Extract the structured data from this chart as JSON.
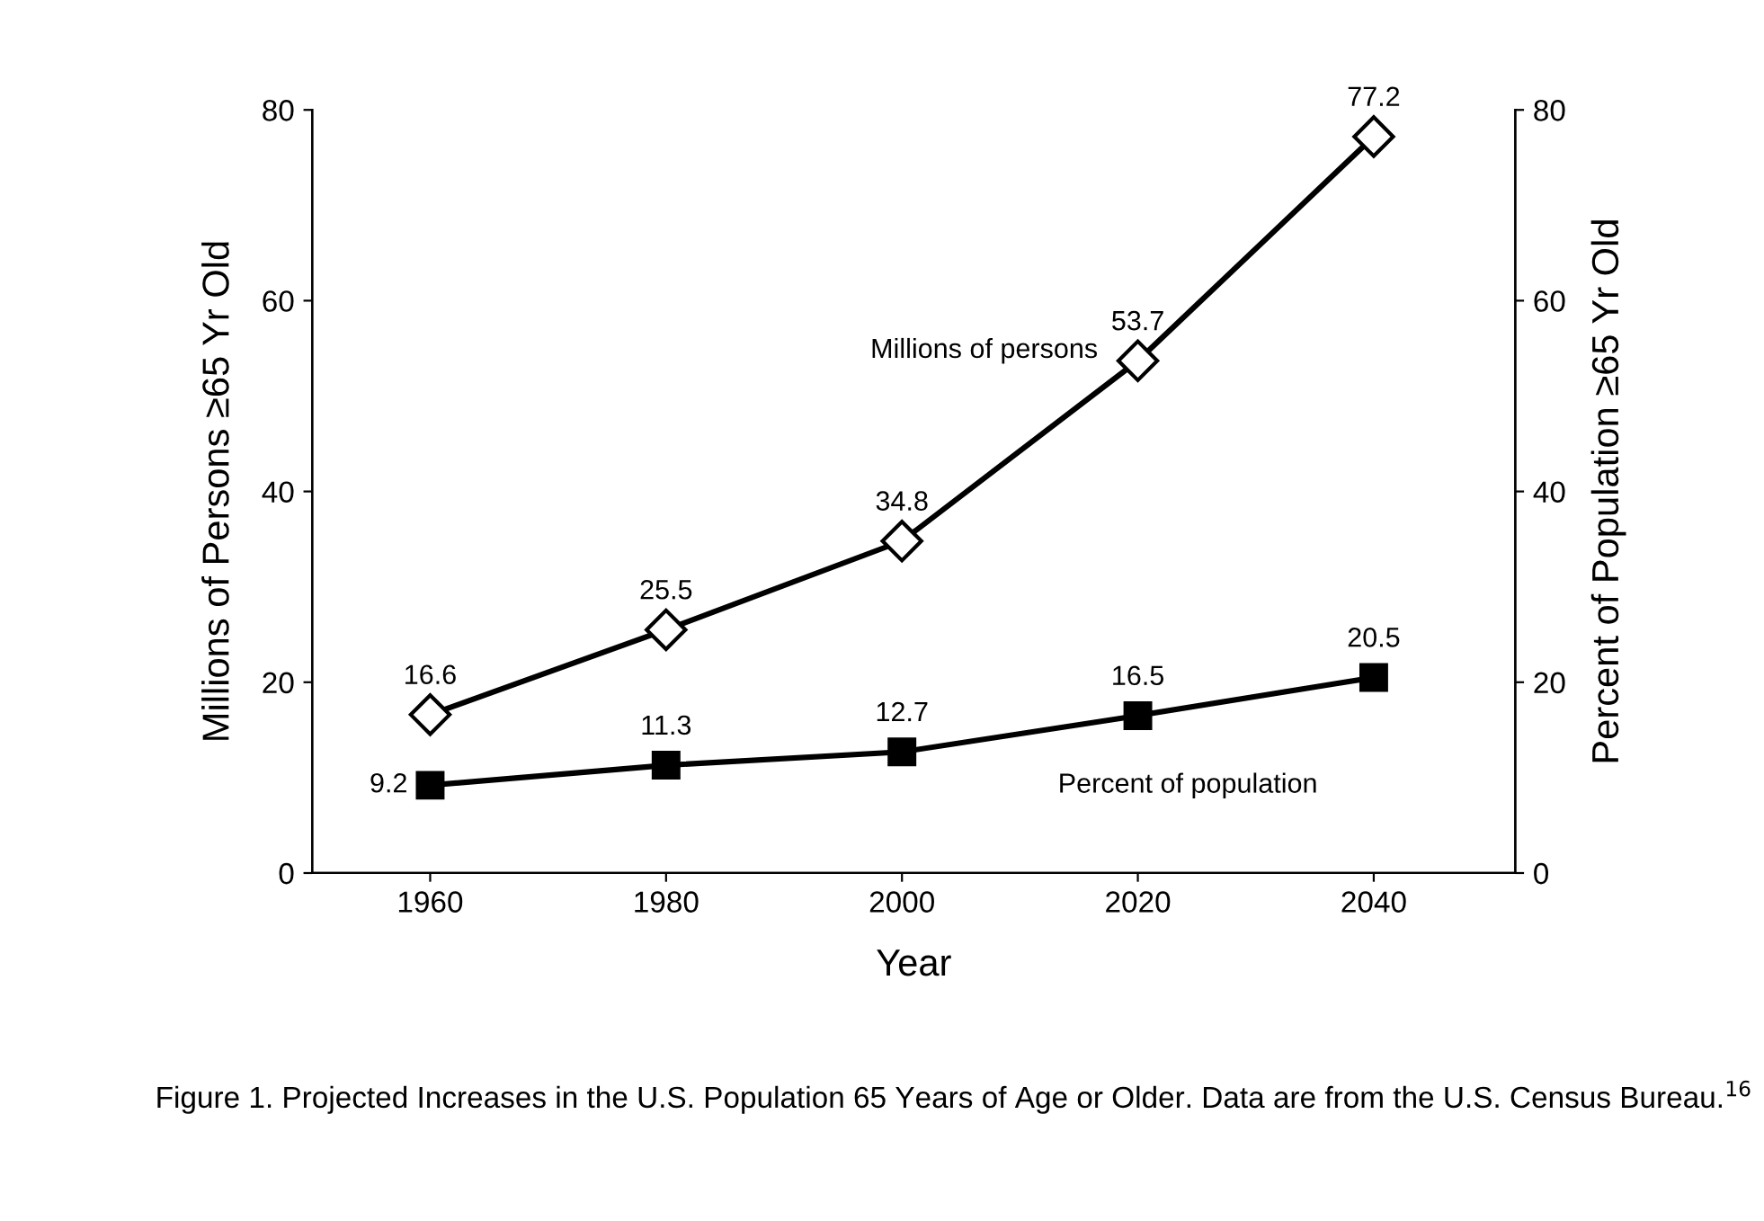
{
  "chart_data": {
    "type": "line",
    "x": [
      1960,
      1980,
      2000,
      2020,
      2040
    ],
    "xlabel": "Year",
    "ylabel": "Millions of Persons ≥65 Yr Old",
    "y2label": "Percent of Population ≥65 Yr Old",
    "series": [
      {
        "name": "Millions of persons",
        "color": "#000000",
        "marker": "diamond",
        "values": [
          16.6,
          25.5,
          34.8,
          53.7,
          77.2
        ]
      },
      {
        "name": "Percent of population",
        "color": "#000000",
        "marker": "square",
        "axis": "y2",
        "values": [
          9.2,
          11.3,
          12.7,
          16.5,
          20.5
        ]
      }
    ],
    "xlim": [
      1950,
      2052
    ],
    "xticks": [
      1960,
      1980,
      2000,
      2020,
      2040
    ],
    "ylim": [
      0,
      80
    ],
    "yticks": [
      0,
      20,
      40,
      60,
      80
    ],
    "y2lim": [
      0,
      80
    ],
    "y2ticks": [
      0,
      20,
      40,
      60,
      80
    ],
    "data_labels": true,
    "grid": false,
    "legend": false,
    "line_style": "solid",
    "annotations": [
      "Figure 1. Projected Increases in the U.S. Population 65 Years of Age or Older. Data are from the U.S. Census Bureau.$^{16}$"
    ]
  }
}
